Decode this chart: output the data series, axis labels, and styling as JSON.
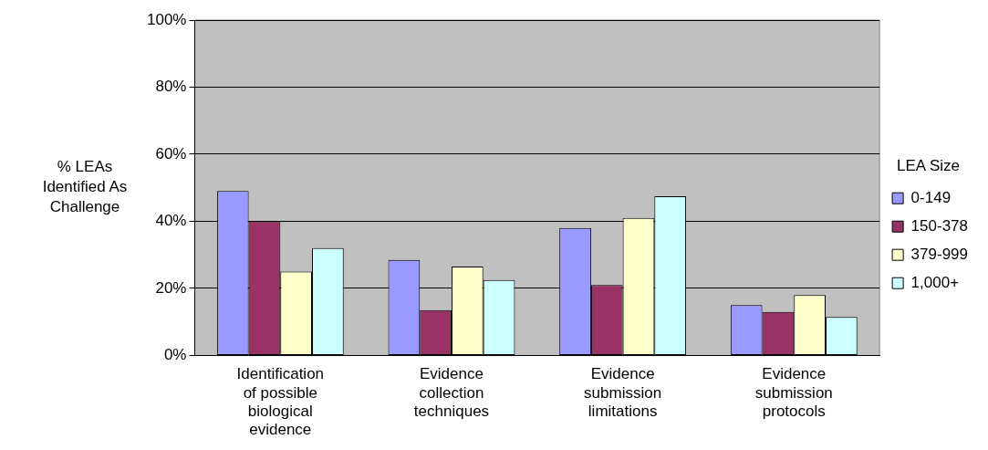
{
  "chart_data": {
    "type": "bar",
    "ylabel": "% LEAs Identified As Challenge",
    "legend_title": "LEA Size",
    "legend": "right",
    "categories": [
      "Identification of possible biological evidence",
      "Evidence collection techniques",
      "Evidence submission limitations",
      "Evidence submission protocols"
    ],
    "series": [
      {
        "name": "0-149",
        "color": "#9999ff",
        "values": [
          49,
          28.5,
          38,
          15
        ]
      },
      {
        "name": "150-378",
        "color": "#993366",
        "values": [
          40,
          13.5,
          21,
          13
        ]
      },
      {
        "name": "379-999",
        "color": "#ffffcc",
        "values": [
          25,
          26.5,
          41,
          18
        ]
      },
      {
        "name": "1,000+",
        "color": "#ccffff",
        "values": [
          32,
          22.5,
          47.5,
          11.5
        ]
      }
    ],
    "ylim": [
      0,
      100
    ],
    "yticks": [
      {
        "value": 0,
        "label": "0%"
      },
      {
        "value": 20,
        "label": "20%"
      },
      {
        "value": 40,
        "label": "40%"
      },
      {
        "value": 60,
        "label": "60%"
      },
      {
        "value": 80,
        "label": "80%"
      },
      {
        "value": 100,
        "label": "100%"
      }
    ],
    "grid": "y"
  }
}
